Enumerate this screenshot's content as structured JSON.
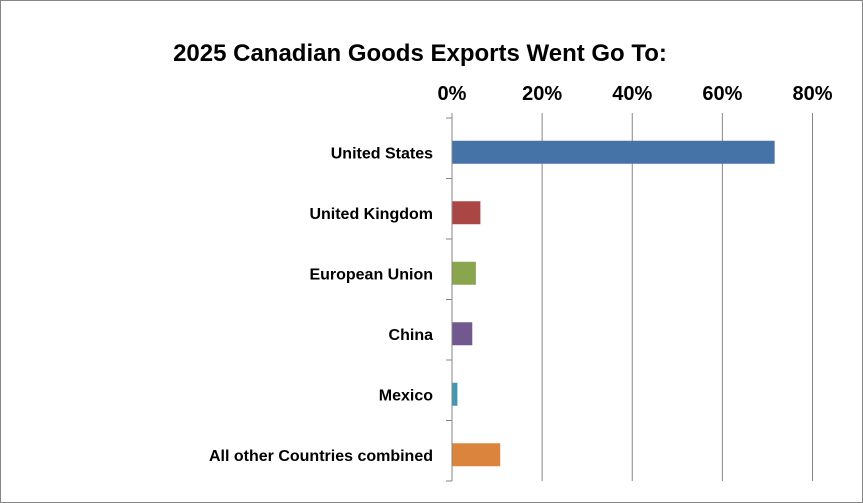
{
  "chart_data": {
    "type": "bar",
    "orientation": "horizontal",
    "title": "2025 Canadian Goods Exports Went Go To:",
    "xlabel": "",
    "ylabel": "",
    "categories": [
      "United States",
      "United Kingdom",
      "European Union",
      "China",
      "Mexico",
      "All other Countries combined"
    ],
    "values": [
      71.6,
      6.3,
      5.3,
      4.5,
      1.2,
      10.7
    ],
    "unit": "%",
    "colors": [
      "#4572A7",
      "#AA4643",
      "#89A54E",
      "#71588F",
      "#4198AF",
      "#DB843D"
    ],
    "xlim": [
      0,
      80
    ],
    "x_ticks": [
      0,
      20,
      40,
      60,
      80
    ],
    "x_tick_labels": [
      "0%",
      "20%",
      "40%",
      "60%",
      "80%"
    ],
    "x_axis_position": "top",
    "grid": true,
    "legend": "none"
  }
}
